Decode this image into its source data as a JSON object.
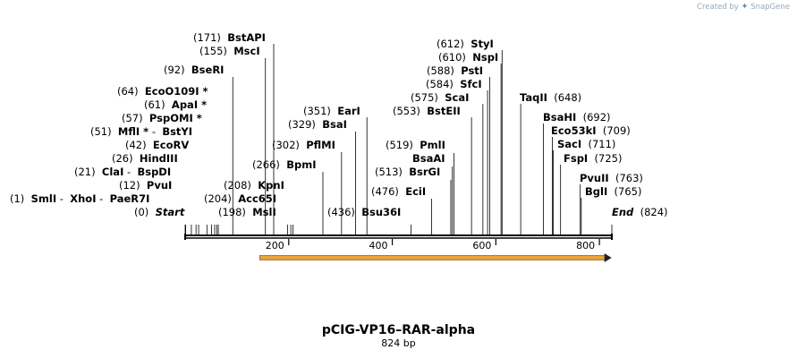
{
  "credit": {
    "prefix": "Created by",
    "brand": "SnapGene"
  },
  "plasmid": {
    "name": "pCIG-VP16–RAR-alpha",
    "length_label": "824 bp",
    "length_bp": 824
  },
  "axis": {
    "ticks": [
      200,
      400,
      600,
      800
    ]
  },
  "feature": {
    "start_bp": 130,
    "end_bp": 820,
    "color": "#e8a33c",
    "direction": "forward"
  },
  "sites": [
    {
      "parts": [
        {
          "pos": "(0)"
        },
        {
          "name": "Start",
          "style": "italic"
        }
      ],
      "cut": 0
    },
    {
      "parts": [
        {
          "pos": "(1)"
        },
        {
          "name": "SmlI"
        },
        {
          "sep": " - "
        },
        {
          "name": "XhoI"
        },
        {
          "sep": " - "
        },
        {
          "name": "PaeR7I"
        }
      ],
      "cut": 1
    },
    {
      "parts": [
        {
          "pos": "(12)"
        },
        {
          "name": "PvuI"
        }
      ],
      "cut": 12
    },
    {
      "parts": [
        {
          "pos": "(21)"
        },
        {
          "name": "ClaI"
        },
        {
          "sep": " - "
        },
        {
          "name": "BspDI"
        }
      ],
      "cut": 21
    },
    {
      "parts": [
        {
          "pos": "(26)"
        },
        {
          "name": "HindIII"
        }
      ],
      "cut": 26
    },
    {
      "parts": [
        {
          "pos": "(42)"
        },
        {
          "name": "EcoRV"
        }
      ],
      "cut": 42
    },
    {
      "parts": [
        {
          "pos": "(51)"
        },
        {
          "name": "MflI *"
        },
        {
          "sep": " - "
        },
        {
          "name": "BstYI"
        }
      ],
      "cut": 51
    },
    {
      "parts": [
        {
          "pos": "(57)"
        },
        {
          "name": "PspOMI *"
        }
      ],
      "cut": 57
    },
    {
      "parts": [
        {
          "pos": "(61)"
        },
        {
          "name": "ApaI *"
        }
      ],
      "cut": 61
    },
    {
      "parts": [
        {
          "pos": "(64)"
        },
        {
          "name": "EcoO109I *"
        }
      ],
      "cut": 64
    },
    {
      "parts": [
        {
          "pos": "(92)"
        },
        {
          "name": "BseRI"
        }
      ],
      "cut": 92
    },
    {
      "parts": [
        {
          "pos": "(155)"
        },
        {
          "name": "MscI"
        }
      ],
      "cut": 155
    },
    {
      "parts": [
        {
          "pos": "(171)"
        },
        {
          "name": "BstAPI"
        }
      ],
      "cut": 171
    },
    {
      "parts": [
        {
          "pos": "(198)"
        },
        {
          "name": "MslI"
        }
      ],
      "cut": 198
    },
    {
      "parts": [
        {
          "pos": "(204)"
        },
        {
          "name": "Acc65I"
        }
      ],
      "cut": 204
    },
    {
      "parts": [
        {
          "pos": "(208)"
        },
        {
          "name": "KpnI"
        }
      ],
      "cut": 208
    },
    {
      "parts": [
        {
          "pos": "(266)"
        },
        {
          "name": "BpmI"
        }
      ],
      "cut": 266
    },
    {
      "parts": [
        {
          "pos": "(302)"
        },
        {
          "name": "PflMI"
        }
      ],
      "cut": 302
    },
    {
      "parts": [
        {
          "pos": "(329)"
        },
        {
          "name": "BsaI"
        }
      ],
      "cut": 329
    },
    {
      "parts": [
        {
          "pos": "(351)"
        },
        {
          "name": "EarI"
        }
      ],
      "cut": 351
    },
    {
      "parts": [
        {
          "pos": "(436)"
        },
        {
          "name": "Bsu36I"
        }
      ],
      "cut": 436
    },
    {
      "parts": [
        {
          "pos": "(476)"
        },
        {
          "name": "EciI"
        }
      ],
      "cut": 476
    },
    {
      "parts": [
        {
          "pos": "(513)"
        },
        {
          "name": "BsrGI"
        }
      ],
      "cut": 513
    },
    {
      "parts": [
        {
          "name": "BsaAI"
        }
      ],
      "cut": 516
    },
    {
      "parts": [
        {
          "pos": "(519)"
        },
        {
          "name": "PmlI"
        }
      ],
      "cut": 519
    },
    {
      "parts": [
        {
          "pos": "(553)"
        },
        {
          "name": "BstEII"
        }
      ],
      "cut": 553
    },
    {
      "parts": [
        {
          "pos": "(575)"
        },
        {
          "name": "ScaI"
        }
      ],
      "cut": 575
    },
    {
      "parts": [
        {
          "pos": "(584)"
        },
        {
          "name": "SfcI"
        }
      ],
      "cut": 584
    },
    {
      "parts": [
        {
          "pos": "(588)"
        },
        {
          "name": "PstI"
        }
      ],
      "cut": 588
    },
    {
      "parts": [
        {
          "pos": "(610)"
        },
        {
          "name": "NspI"
        }
      ],
      "cut": 610
    },
    {
      "parts": [
        {
          "pos": "(612)"
        },
        {
          "name": "StyI"
        }
      ],
      "cut": 612
    },
    {
      "parts": [
        {
          "name": "TaqII"
        },
        {
          "pos": "(648)"
        }
      ],
      "cut": 648
    },
    {
      "parts": [
        {
          "name": "BsaHI"
        },
        {
          "pos": "(692)"
        }
      ],
      "cut": 692
    },
    {
      "parts": [
        {
          "name": "Eco53kI"
        },
        {
          "pos": "(709)"
        }
      ],
      "cut": 709
    },
    {
      "parts": [
        {
          "name": "SacI"
        },
        {
          "pos": "(711)"
        }
      ],
      "cut": 711
    },
    {
      "parts": [
        {
          "name": "FspI"
        },
        {
          "pos": "(725)"
        }
      ],
      "cut": 725
    },
    {
      "parts": [
        {
          "name": "PvuII"
        },
        {
          "pos": "(763)"
        }
      ],
      "cut": 763
    },
    {
      "parts": [
        {
          "name": "BglI"
        },
        {
          "pos": "(765)"
        }
      ],
      "cut": 765
    },
    {
      "parts": [
        {
          "name": "End",
          "style": "italic"
        },
        {
          "pos": "(824)"
        }
      ],
      "cut": 824
    }
  ]
}
